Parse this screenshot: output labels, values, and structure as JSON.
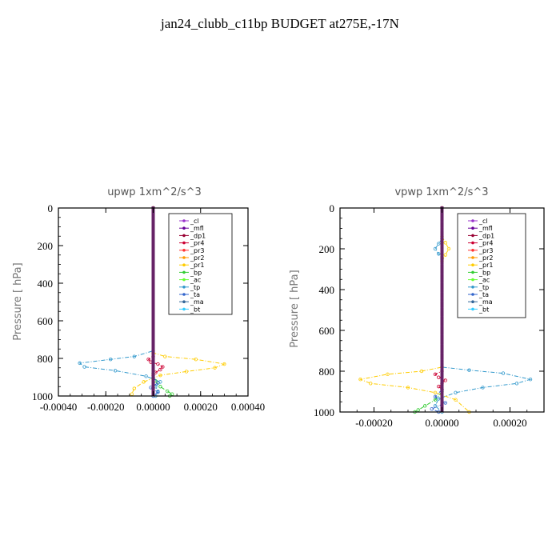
{
  "page": {
    "title": "jan24_clubb_c11bp  BUDGET at275E,-17N"
  },
  "legend_entries": [
    {
      "name": "_cl",
      "color": "#9933cc"
    },
    {
      "name": "_mfl",
      "color": "#660099"
    },
    {
      "name": "_dp1",
      "color": "#990033"
    },
    {
      "name": "_pr4",
      "color": "#cc0033"
    },
    {
      "name": "_pr3",
      "color": "#ff3333"
    },
    {
      "name": "_pr2",
      "color": "#ff9900"
    },
    {
      "name": "_pr1",
      "color": "#ffcc00"
    },
    {
      "name": "_bp",
      "color": "#33cc33"
    },
    {
      "name": "_ac",
      "color": "#66ff33"
    },
    {
      "name": "_tp",
      "color": "#3399cc"
    },
    {
      "name": "_ta",
      "color": "#3366cc"
    },
    {
      "name": "_ma",
      "color": "#336699"
    },
    {
      "name": "_bt",
      "color": "#33ccff"
    }
  ],
  "chart_data": [
    {
      "type": "line",
      "title": "upwp   1xm^2/s^3",
      "ylabel": "Pressure [ hPa]",
      "xlim": [
        -0.0004,
        0.0004
      ],
      "ylim": [
        1000,
        0
      ],
      "xticks": [
        -0.0004,
        -0.0002,
        0.0,
        0.0002,
        0.0004
      ],
      "xtick_labels": [
        "-0.00040",
        "-0.00020",
        "0.00000",
        "0.00020",
        "0.00040"
      ],
      "yticks": [
        0,
        200,
        400,
        600,
        800,
        1000
      ],
      "ytick_labels": [
        "0",
        "200",
        "400",
        "600",
        "800",
        "1000"
      ],
      "legend_position": "top-right",
      "series": [
        {
          "name": "_tp",
          "color": "#3399cc",
          "x": [
            0,
            0,
            -8e-05,
            -0.00018,
            -0.00031,
            -0.00029,
            -0.00016,
            -3e-05,
            3e-05,
            1e-05,
            2e-05,
            1e-05
          ],
          "y": [
            0,
            760,
            790,
            805,
            825,
            845,
            865,
            895,
            925,
            950,
            975,
            1000
          ]
        },
        {
          "name": "_pr1",
          "color": "#ffcc00",
          "x": [
            0,
            0,
            5e-05,
            0.00018,
            0.0003,
            0.00026,
            0.00014,
            3e-05,
            -4e-05,
            -8e-05,
            -9e-05
          ],
          "y": [
            0,
            770,
            790,
            805,
            830,
            850,
            870,
            890,
            925,
            960,
            990
          ]
        },
        {
          "name": "_pr4",
          "color": "#cc0033",
          "x": [
            0,
            0,
            -2e-05,
            -1e-05,
            2e-05,
            4e-05,
            3e-05,
            1e-05,
            0.0
          ],
          "y": [
            0,
            790,
            805,
            820,
            830,
            845,
            860,
            875,
            890
          ]
        },
        {
          "name": "_bp",
          "color": "#33cc33",
          "x": [
            0,
            1e-05,
            3e-05,
            6e-05,
            8e-05,
            7e-05
          ],
          "y": [
            880,
            920,
            950,
            975,
            990,
            1000
          ]
        },
        {
          "name": "_ta",
          "color": "#3366cc",
          "x": [
            0,
            2e-05,
            -1e-05,
            2e-05,
            0.0
          ],
          "y": [
            900,
            930,
            955,
            980,
            1000
          ]
        },
        {
          "name": "_mfl",
          "color": "#660099",
          "x": [
            0,
            0
          ],
          "y": [
            0,
            1000
          ]
        }
      ]
    },
    {
      "type": "line",
      "title": "vpwp   1xm^2/s^3",
      "ylabel": "Pressure [ hPa]",
      "xlim": [
        -0.0003,
        0.0003
      ],
      "ylim": [
        1000,
        0
      ],
      "xticks": [
        -0.0002,
        0.0,
        0.0002
      ],
      "xtick_labels": [
        "-0.00020",
        "0.00000",
        "0.00020"
      ],
      "yticks": [
        0,
        200,
        400,
        600,
        800,
        1000
      ],
      "ytick_labels": [
        "0",
        "200",
        "400",
        "600",
        "800",
        "1000"
      ],
      "legend_position": "top-right",
      "series": [
        {
          "name": "_tp",
          "color": "#3399cc",
          "x": [
            0,
            0,
            8e-05,
            0.00018,
            0.00026,
            0.00022,
            0.00012,
            4e-05,
            -1e-05,
            -2e-05,
            0.0
          ],
          "y": [
            0,
            780,
            795,
            810,
            840,
            860,
            880,
            905,
            935,
            970,
            1000
          ]
        },
        {
          "name": "_pr1",
          "color": "#ffcc00",
          "x": [
            0,
            0,
            -6e-05,
            -0.00016,
            -0.00024,
            -0.00021,
            -0.0001,
            -2e-05,
            4e-05,
            8e-05
          ],
          "y": [
            0,
            780,
            800,
            815,
            840,
            860,
            880,
            905,
            940,
            1000
          ]
        },
        {
          "name": "_pr4",
          "color": "#cc0033",
          "x": [
            0,
            0,
            -2e-05,
            -1e-05,
            1e-05,
            0.0,
            -1e-05,
            0.0
          ],
          "y": [
            0,
            800,
            815,
            830,
            845,
            860,
            875,
            890
          ]
        },
        {
          "name": "_bp",
          "color": "#33cc33",
          "x": [
            0,
            -2e-05,
            -5e-05,
            -7e-05,
            -8e-05
          ],
          "y": [
            900,
            940,
            970,
            990,
            1000
          ]
        },
        {
          "name": "_ta",
          "color": "#3366cc",
          "x": [
            0,
            -2e-05,
            1e-05,
            -3e-05,
            -1e-05
          ],
          "y": [
            890,
            925,
            955,
            985,
            1000
          ]
        },
        {
          "name": "_pr1_upper",
          "color": "#ffcc00",
          "x": [
            0,
            1e-05,
            2e-05,
            1e-05,
            0
          ],
          "y": [
            140,
            170,
            200,
            230,
            260
          ]
        },
        {
          "name": "_tp_upper",
          "color": "#3399cc",
          "x": [
            0,
            -1e-05,
            -2e-05,
            -1e-05,
            0
          ],
          "y": [
            150,
            175,
            200,
            225,
            250
          ]
        },
        {
          "name": "_mfl",
          "color": "#660099",
          "x": [
            0,
            0
          ],
          "y": [
            0,
            1000
          ]
        }
      ]
    }
  ]
}
